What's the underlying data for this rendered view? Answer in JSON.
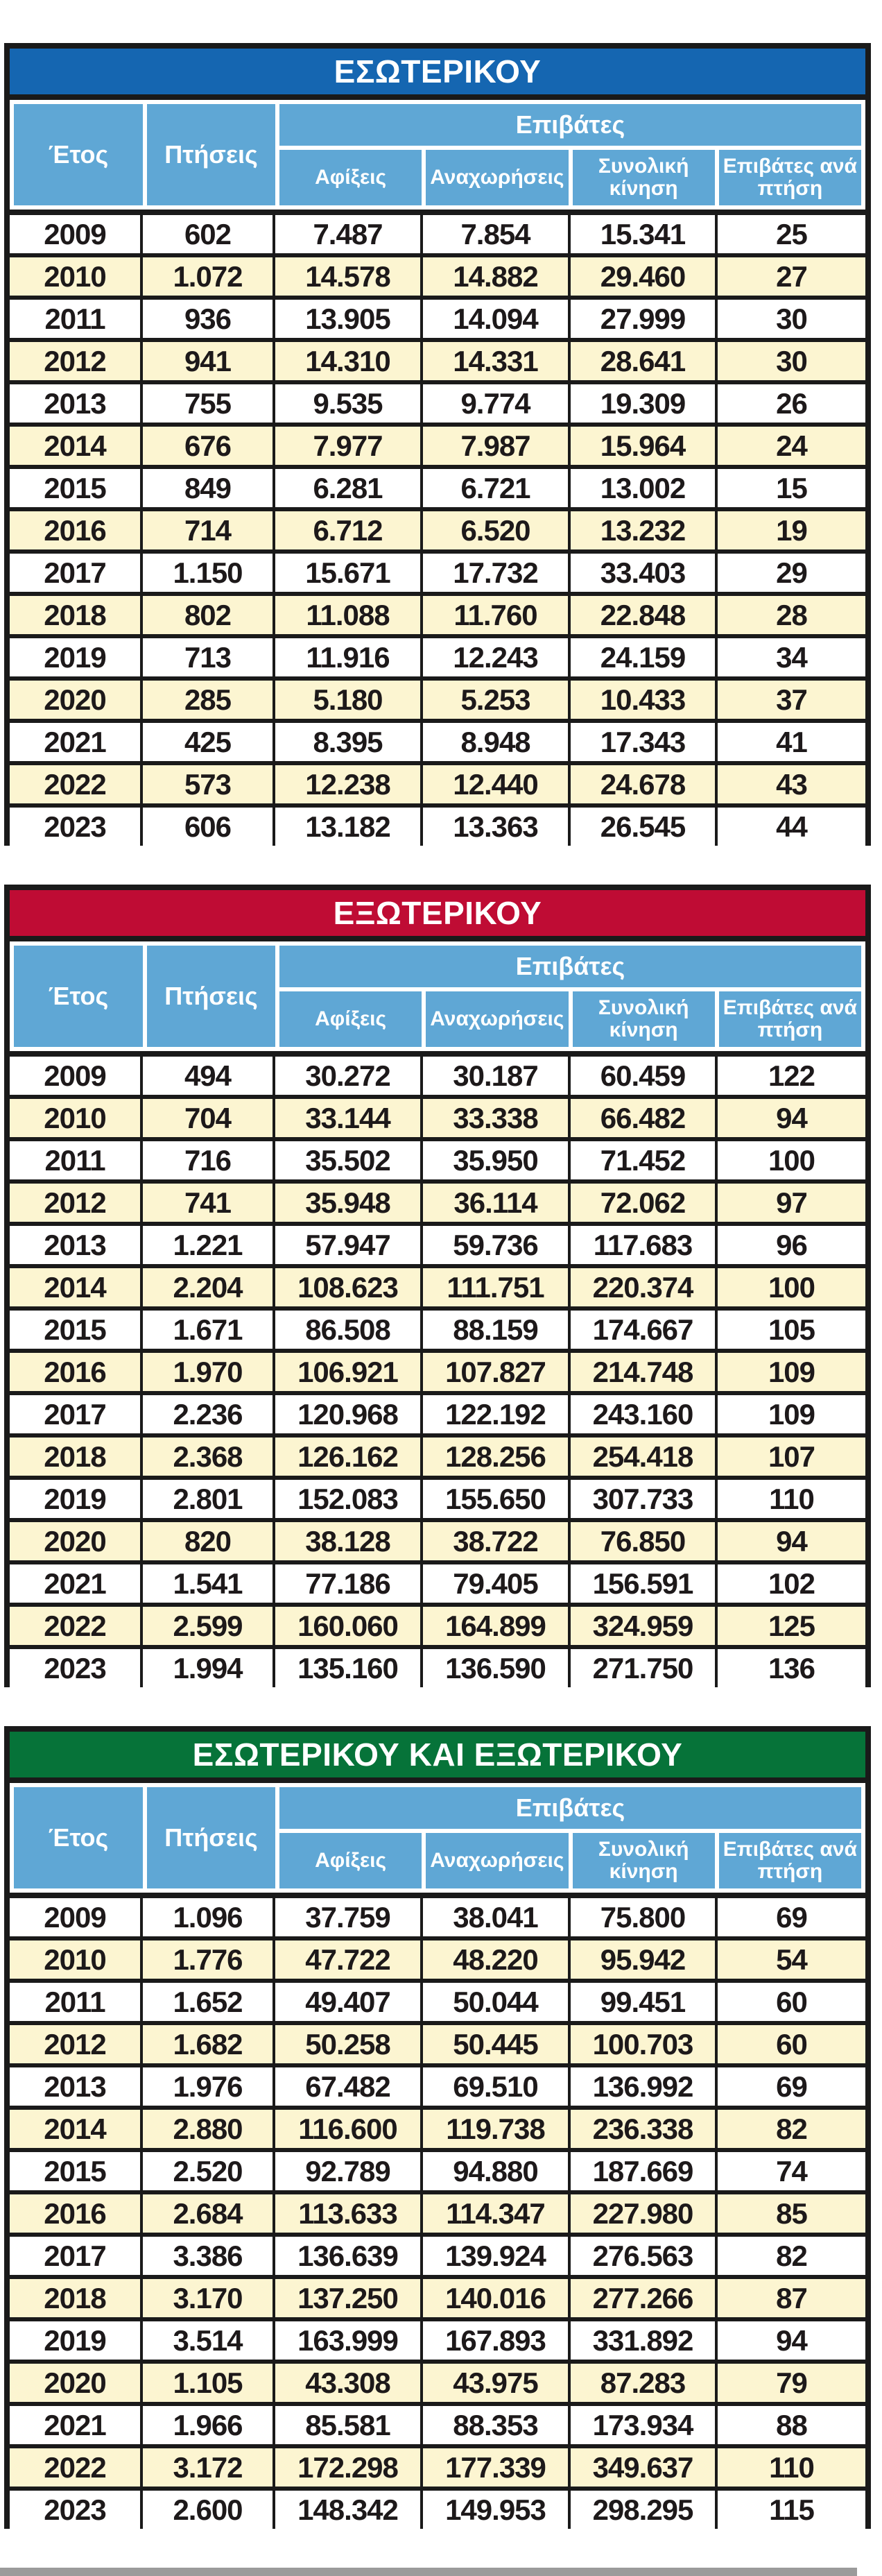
{
  "header": {
    "year": "Έτος",
    "flights": "Πτήσεις",
    "passengers_group": "Επιβάτες",
    "arrivals": "Αφίξεις",
    "departures": "Αναχωρήσεις",
    "total": "Συνολική κίνηση",
    "per_flight": "Επιβάτες ανά πτήση"
  },
  "colors": {
    "domestic_title_bg": "#1566b1",
    "international_title_bg": "#bf0c34",
    "combined_title_bg": "#067339",
    "header_cell_bg": "#5fa7d5",
    "header_text": "#ffffff",
    "alt_row_bg": "#fcf5d1",
    "border": "#1a1a1a",
    "body_text": "#1d191a",
    "bottom_bar": "#9b9b9b"
  },
  "tables": [
    {
      "id": "domestic",
      "title": "ΕΣΩΤΕΡΙΚΟΥ",
      "title_bg": "#1566b1",
      "rows": [
        [
          "2009",
          "602",
          "7.487",
          "7.854",
          "15.341",
          "25"
        ],
        [
          "2010",
          "1.072",
          "14.578",
          "14.882",
          "29.460",
          "27"
        ],
        [
          "2011",
          "936",
          "13.905",
          "14.094",
          "27.999",
          "30"
        ],
        [
          "2012",
          "941",
          "14.310",
          "14.331",
          "28.641",
          "30"
        ],
        [
          "2013",
          "755",
          "9.535",
          "9.774",
          "19.309",
          "26"
        ],
        [
          "2014",
          "676",
          "7.977",
          "7.987",
          "15.964",
          "24"
        ],
        [
          "2015",
          "849",
          "6.281",
          "6.721",
          "13.002",
          "15"
        ],
        [
          "2016",
          "714",
          "6.712",
          "6.520",
          "13.232",
          "19"
        ],
        [
          "2017",
          "1.150",
          "15.671",
          "17.732",
          "33.403",
          "29"
        ],
        [
          "2018",
          "802",
          "11.088",
          "11.760",
          "22.848",
          "28"
        ],
        [
          "2019",
          "713",
          "11.916",
          "12.243",
          "24.159",
          "34"
        ],
        [
          "2020",
          "285",
          "5.180",
          "5.253",
          "10.433",
          "37"
        ],
        [
          "2021",
          "425",
          "8.395",
          "8.948",
          "17.343",
          "41"
        ],
        [
          "2022",
          "573",
          "12.238",
          "12.440",
          "24.678",
          "43"
        ],
        [
          "2023",
          "606",
          "13.182",
          "13.363",
          "26.545",
          "44"
        ]
      ]
    },
    {
      "id": "international",
      "title": "ΕΞΩΤΕΡΙΚΟΥ",
      "title_bg": "#bf0c34",
      "rows": [
        [
          "2009",
          "494",
          "30.272",
          "30.187",
          "60.459",
          "122"
        ],
        [
          "2010",
          "704",
          "33.144",
          "33.338",
          "66.482",
          "94"
        ],
        [
          "2011",
          "716",
          "35.502",
          "35.950",
          "71.452",
          "100"
        ],
        [
          "2012",
          "741",
          "35.948",
          "36.114",
          "72.062",
          "97"
        ],
        [
          "2013",
          "1.221",
          "57.947",
          "59.736",
          "117.683",
          "96"
        ],
        [
          "2014",
          "2.204",
          "108.623",
          "111.751",
          "220.374",
          "100"
        ],
        [
          "2015",
          "1.671",
          "86.508",
          "88.159",
          "174.667",
          "105"
        ],
        [
          "2016",
          "1.970",
          "106.921",
          "107.827",
          "214.748",
          "109"
        ],
        [
          "2017",
          "2.236",
          "120.968",
          "122.192",
          "243.160",
          "109"
        ],
        [
          "2018",
          "2.368",
          "126.162",
          "128.256",
          "254.418",
          "107"
        ],
        [
          "2019",
          "2.801",
          "152.083",
          "155.650",
          "307.733",
          "110"
        ],
        [
          "2020",
          "820",
          "38.128",
          "38.722",
          "76.850",
          "94"
        ],
        [
          "2021",
          "1.541",
          "77.186",
          "79.405",
          "156.591",
          "102"
        ],
        [
          "2022",
          "2.599",
          "160.060",
          "164.899",
          "324.959",
          "125"
        ],
        [
          "2023",
          "1.994",
          "135.160",
          "136.590",
          "271.750",
          "136"
        ]
      ]
    },
    {
      "id": "combined",
      "title": "ΕΣΩΤΕΡΙΚΟΥ ΚΑΙ ΕΞΩΤΕΡΙΚΟΥ",
      "title_bg": "#067339",
      "rows": [
        [
          "2009",
          "1.096",
          "37.759",
          "38.041",
          "75.800",
          "69"
        ],
        [
          "2010",
          "1.776",
          "47.722",
          "48.220",
          "95.942",
          "54"
        ],
        [
          "2011",
          "1.652",
          "49.407",
          "50.044",
          "99.451",
          "60"
        ],
        [
          "2012",
          "1.682",
          "50.258",
          "50.445",
          "100.703",
          "60"
        ],
        [
          "2013",
          "1.976",
          "67.482",
          "69.510",
          "136.992",
          "69"
        ],
        [
          "2014",
          "2.880",
          "116.600",
          "119.738",
          "236.338",
          "82"
        ],
        [
          "2015",
          "2.520",
          "92.789",
          "94.880",
          "187.669",
          "74"
        ],
        [
          "2016",
          "2.684",
          "113.633",
          "114.347",
          "227.980",
          "85"
        ],
        [
          "2017",
          "3.386",
          "136.639",
          "139.924",
          "276.563",
          "82"
        ],
        [
          "2018",
          "3.170",
          "137.250",
          "140.016",
          "277.266",
          "87"
        ],
        [
          "2019",
          "3.514",
          "163.999",
          "167.893",
          "331.892",
          "94"
        ],
        [
          "2020",
          "1.105",
          "43.308",
          "43.975",
          "87.283",
          "79"
        ],
        [
          "2021",
          "1.966",
          "85.581",
          "88.353",
          "173.934",
          "88"
        ],
        [
          "2022",
          "3.172",
          "172.298",
          "177.339",
          "349.637",
          "110"
        ],
        [
          "2023",
          "2.600",
          "148.342",
          "149.953",
          "298.295",
          "115"
        ]
      ]
    }
  ]
}
